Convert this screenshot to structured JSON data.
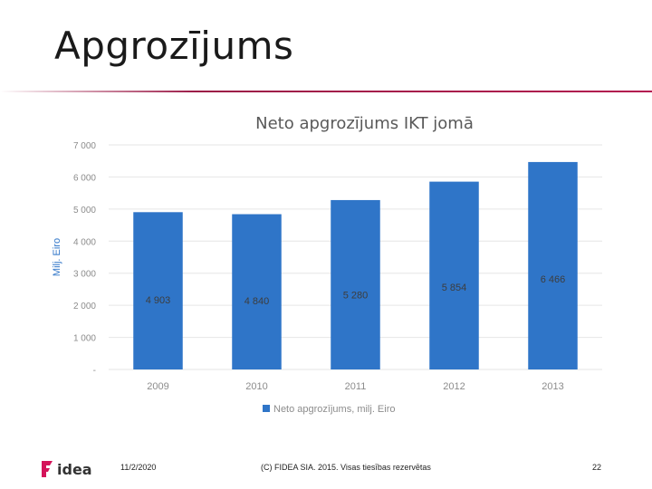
{
  "slide": {
    "title": "Apgrozījums"
  },
  "chart_data": {
    "type": "bar",
    "title": "Neto apgrozījums IKT jomā",
    "ylabel": "Milj. Eiro",
    "xlabel": "",
    "categories": [
      "2009",
      "2010",
      "2011",
      "2012",
      "2013"
    ],
    "series": [
      {
        "name": "Neto apgrozījums, milj. Eiro",
        "values": [
          4903,
          4840,
          5280,
          5854,
          6466
        ]
      }
    ],
    "data_labels": [
      "4 903",
      "4 840",
      "5 280",
      "5 854",
      "6 466"
    ],
    "y_ticks": [
      {
        "value": 0,
        "label": "-"
      },
      {
        "value": 1000,
        "label": "1 000"
      },
      {
        "value": 2000,
        "label": "2 000"
      },
      {
        "value": 3000,
        "label": "3 000"
      },
      {
        "value": 4000,
        "label": "4 000"
      },
      {
        "value": 5000,
        "label": "5 000"
      },
      {
        "value": 6000,
        "label": "6 000"
      },
      {
        "value": 7000,
        "label": "7 000"
      }
    ],
    "ylim": [
      0,
      7000
    ],
    "grid": true,
    "legend_position": "bottom",
    "colors": {
      "bar": "#2f75c8",
      "grid": "#e6e6e6",
      "axis_text": "#8c8c8c",
      "title": "#595959",
      "ylabel": "#2f75c8",
      "data_label": "#3d3d3d"
    }
  },
  "footer": {
    "logo_text": "idea",
    "date": "11/2/2020",
    "copyright": "(C) FIDEA SIA. 2015. Visas tiesības rezervētas",
    "page": "22"
  },
  "colors": {
    "accent": "#b3154f",
    "logo_mark": "#d4145a"
  },
  "icons": {
    "logo": "fidea-logo-icon"
  }
}
